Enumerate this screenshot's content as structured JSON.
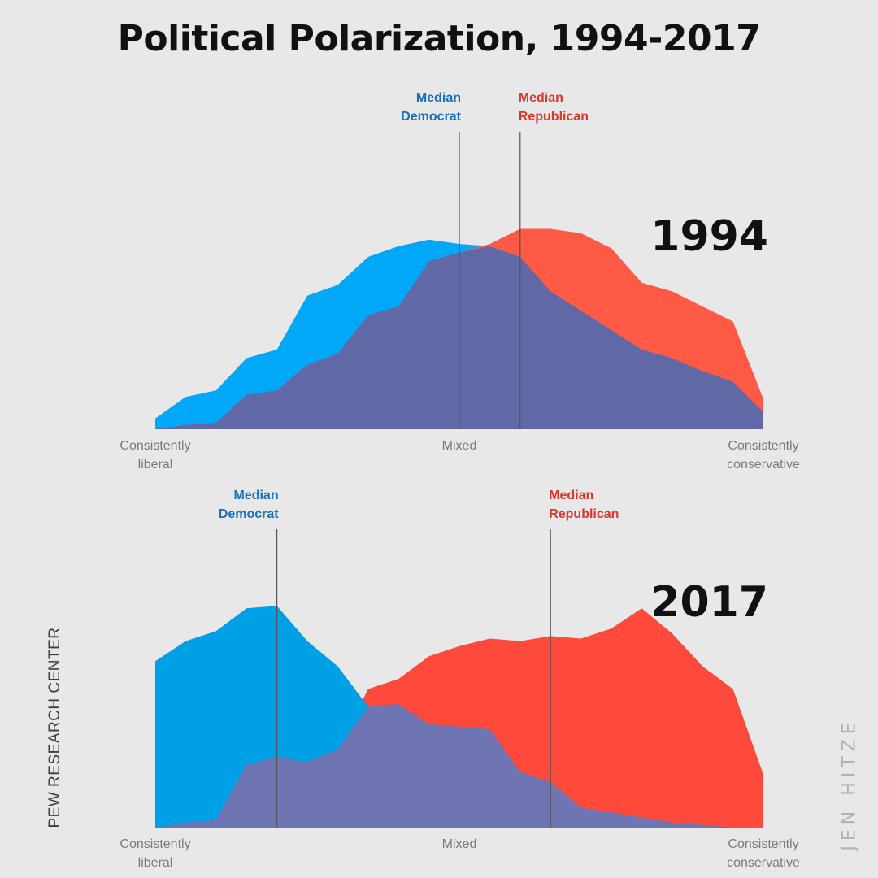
{
  "title": "Political Polarization, 1994-2017",
  "source": "PEW RESEARCH CENTER",
  "credit": "JEN HITZE",
  "colors": {
    "democrat": "#00a8f7",
    "democrat_2017": "#00a0e6",
    "republican": "#ff5a45",
    "republican_2017": "#ff4a3b",
    "overlap": "#6168a6",
    "overlap_2017": "#6e75b2",
    "median_dem_label": "#1a6fbd",
    "median_rep_label": "#e0352b",
    "median_line": "#555555"
  },
  "chart_data": [
    {
      "type": "area",
      "title": "1994",
      "x_range": [
        1,
        21
      ],
      "x": [
        1,
        2,
        3,
        4,
        5,
        6,
        7,
        8,
        9,
        10,
        11,
        12,
        13,
        14,
        15,
        16,
        17,
        18,
        19,
        20,
        21
      ],
      "tick_labels": [
        {
          "x": 1,
          "lines": [
            "Consistently",
            "liberal"
          ]
        },
        {
          "x": 11,
          "lines": [
            "Mixed"
          ]
        },
        {
          "x": 21,
          "lines": [
            "Consistently",
            "conservative"
          ]
        }
      ],
      "series": [
        {
          "name": "Democrat",
          "values": [
            5,
            15,
            18,
            33,
            37,
            62,
            67,
            80,
            85,
            88,
            86,
            85,
            80,
            64,
            55,
            46,
            37,
            33,
            27,
            22,
            8
          ]
        },
        {
          "name": "Republican",
          "values": [
            0,
            2,
            3,
            16,
            18,
            30,
            35,
            53,
            57,
            78,
            82,
            86,
            93,
            93,
            91,
            84,
            68,
            64,
            57,
            50,
            14
          ]
        }
      ],
      "medians": [
        {
          "label_lines": [
            "Median",
            "Democrat"
          ],
          "x": 11,
          "party": "democrat"
        },
        {
          "label_lines": [
            "Median",
            "Republican"
          ],
          "x": 13,
          "party": "republican"
        }
      ],
      "grid": false
    },
    {
      "type": "area",
      "title": "2017",
      "x_range": [
        1,
        21
      ],
      "x": [
        1,
        2,
        3,
        4,
        5,
        6,
        7,
        8,
        9,
        10,
        11,
        12,
        13,
        14,
        15,
        16,
        17,
        18,
        19,
        20,
        21
      ],
      "tick_labels": [
        {
          "x": 1,
          "lines": [
            "Consistently",
            "liberal"
          ]
        },
        {
          "x": 11,
          "lines": [
            "Mixed"
          ]
        },
        {
          "x": 21,
          "lines": [
            "Consistently",
            "conservative"
          ]
        }
      ],
      "series": [
        {
          "name": "Democrat",
          "values": [
            66,
            74,
            78,
            87,
            88,
            74,
            64,
            48,
            49,
            41,
            40,
            39,
            22,
            18,
            8,
            6,
            4,
            2,
            1,
            0,
            0
          ]
        },
        {
          "name": "Republican",
          "values": [
            0,
            2,
            3,
            25,
            28,
            26,
            31,
            55,
            59,
            68,
            72,
            75,
            74,
            76,
            75,
            79,
            87,
            77,
            64,
            55,
            21
          ]
        }
      ],
      "medians": [
        {
          "label_lines": [
            "Median",
            "Democrat"
          ],
          "x": 5,
          "party": "democrat"
        },
        {
          "label_lines": [
            "Median",
            "Republican"
          ],
          "x": 14,
          "party": "republican"
        }
      ],
      "grid": false
    }
  ]
}
